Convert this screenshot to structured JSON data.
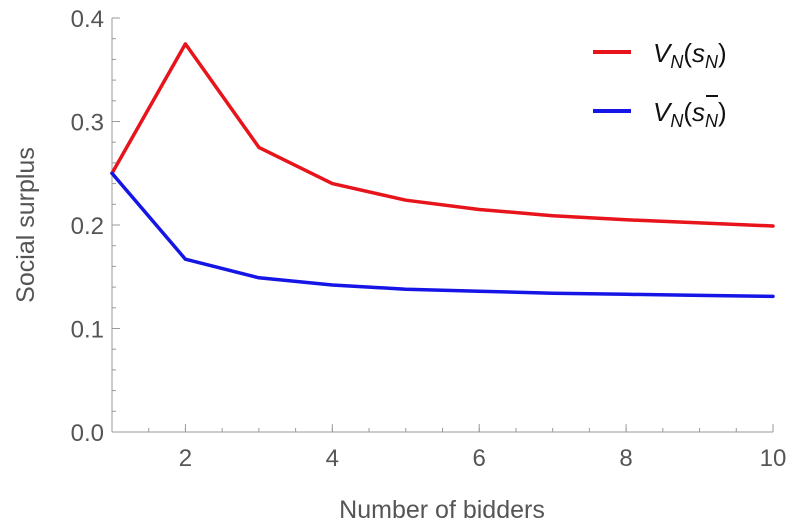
{
  "chart_data": {
    "type": "line",
    "xlabel": "Number of bidders",
    "ylabel": "Social surplus",
    "xlim": [
      1,
      10
    ],
    "ylim": [
      0,
      0.4
    ],
    "x_ticks": [
      2,
      4,
      6,
      8,
      10
    ],
    "y_ticks": [
      0.0,
      0.1,
      0.2,
      0.3,
      0.4
    ],
    "y_tick_labels": [
      "0.0",
      "0.1",
      "0.2",
      "0.3",
      "0.4"
    ],
    "grid": false,
    "legend_position": "top-right",
    "x": [
      1,
      2,
      3,
      4,
      5,
      6,
      7,
      8,
      9,
      10
    ],
    "series": [
      {
        "name": "V_N(s_N)",
        "color": "#e8141b",
        "values": [
          0.25,
          0.375,
          0.275,
          0.24,
          0.224,
          0.215,
          0.209,
          0.205,
          0.202,
          0.199
        ]
      },
      {
        "name": "V_N(s̄_N)",
        "color": "#1515e6",
        "values": [
          0.25,
          0.167,
          0.149,
          0.142,
          0.138,
          0.136,
          0.134,
          0.133,
          0.132,
          0.131
        ]
      }
    ]
  }
}
